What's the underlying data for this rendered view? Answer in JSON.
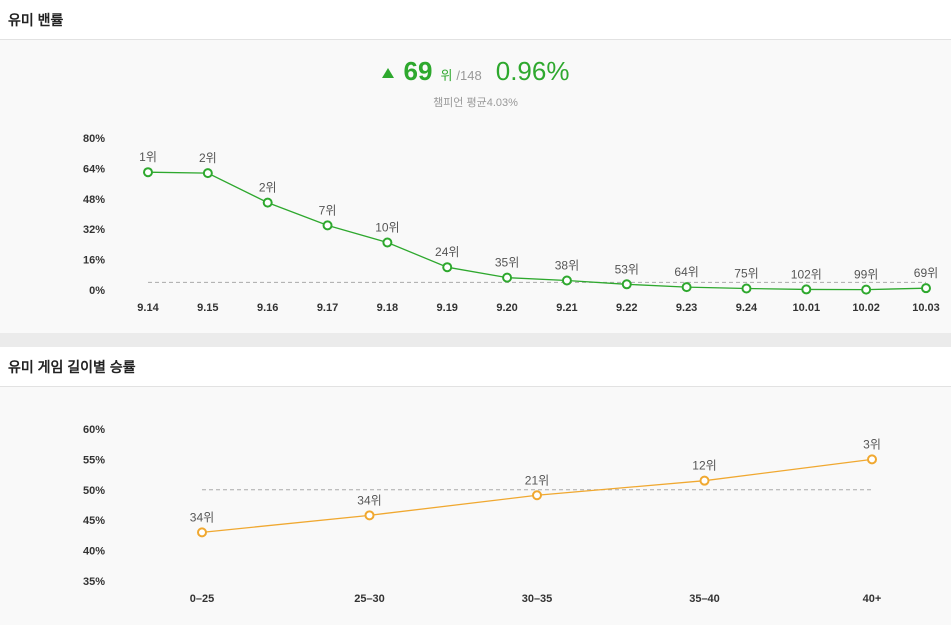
{
  "panel1": {
    "title": "유미 밴률",
    "summary": {
      "rank": "69",
      "rank_unit": "위",
      "rank_total": "/148",
      "rate": "0.96%",
      "trend": "up",
      "avg_text": "챔피언 평균4.03%"
    }
  },
  "panel2": {
    "title": "유미 게임 길이별 승률"
  },
  "colors": {
    "green": "#2ea82e",
    "orange": "#f0a830",
    "dashed": "#aaaaaa"
  },
  "chart_data": [
    {
      "type": "line",
      "ylim": [
        0,
        80
      ],
      "yticks": [
        "80%",
        "64%",
        "48%",
        "32%",
        "16%",
        "0%"
      ],
      "ytick_values": [
        80,
        64,
        48,
        32,
        16,
        0
      ],
      "categories": [
        "9.14",
        "9.15",
        "9.16",
        "9.17",
        "9.18",
        "9.19",
        "9.20",
        "9.21",
        "9.22",
        "9.23",
        "9.24",
        "10.01",
        "10.02",
        "10.03"
      ],
      "values": [
        62,
        61.5,
        46,
        34,
        25,
        12,
        6.5,
        5,
        3,
        1.5,
        0.8,
        0.3,
        0.2,
        0.96
      ],
      "labels": [
        "1위",
        "2위",
        "2위",
        "7위",
        "10위",
        "24위",
        "35위",
        "38위",
        "53위",
        "64위",
        "75위",
        "102위",
        "99위",
        "69위"
      ],
      "reference_value": 4.03
    },
    {
      "type": "line",
      "ylim": [
        35,
        60
      ],
      "yticks": [
        "60%",
        "55%",
        "50%",
        "45%",
        "40%",
        "35%"
      ],
      "ytick_values": [
        60,
        55,
        50,
        45,
        40,
        35
      ],
      "categories": [
        "0–25",
        "25–30",
        "30–35",
        "35–40",
        "40+"
      ],
      "values": [
        43,
        45.8,
        49.1,
        51.5,
        55
      ],
      "labels": [
        "34위",
        "34위",
        "21위",
        "12위",
        "3위"
      ],
      "reference_value": 50
    }
  ]
}
